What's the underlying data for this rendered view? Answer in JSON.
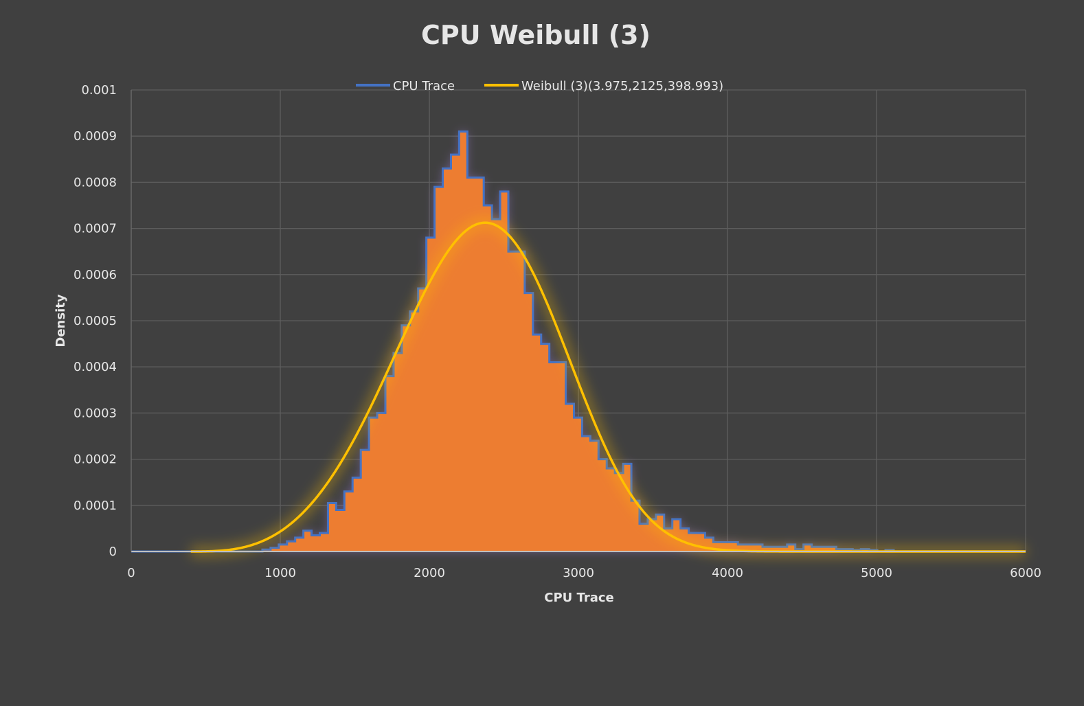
{
  "chart_data": {
    "type": "histogram_with_fit",
    "title": "CPU Weibull (3)",
    "xlabel": "CPU Trace",
    "ylabel": "Density",
    "xlim": [
      0,
      6000
    ],
    "ylim": [
      0,
      0.001
    ],
    "x_ticks": [
      "0",
      "1000",
      "2000",
      "3000",
      "4000",
      "5000",
      "6000"
    ],
    "y_ticks": [
      "0",
      "0.0001",
      "0.0002",
      "0.0003",
      "0.0004",
      "0.0005",
      "0.0006",
      "0.0007",
      "0.0008",
      "0.0009",
      "0.001"
    ],
    "grid": true,
    "legend_position": "top",
    "series": [
      {
        "name": "CPU Trace",
        "kind": "histogram",
        "line_color": "#4472c4",
        "fill_color": "#ed7d31",
        "bin_edges": [
          0,
          55,
          110,
          165,
          220,
          275,
          330,
          385,
          440,
          495,
          550,
          605,
          660,
          715,
          770,
          825,
          880,
          935,
          990,
          1045,
          1100,
          1155,
          1210,
          1265,
          1320,
          1375,
          1430,
          1485,
          1540,
          1595,
          1650,
          1705,
          1760,
          1815,
          1870,
          1925,
          1980,
          2035,
          2090,
          2145,
          2200,
          2255,
          2310,
          2365,
          2420,
          2475,
          2530,
          2585,
          2640,
          2695,
          2750,
          2805,
          2860,
          2915,
          2970,
          3025,
          3080,
          3135,
          3190,
          3245,
          3300,
          3355,
          3410,
          3465,
          3520,
          3575,
          3630,
          3685,
          3740,
          3795,
          3850,
          3905,
          3960,
          4015,
          4070,
          4125,
          4180,
          4235,
          4290,
          4345,
          4400,
          4455,
          4510,
          4565,
          4620,
          4675,
          4730,
          4785,
          4840,
          4895,
          4950,
          5005,
          5060,
          5115,
          5170,
          5225,
          5280,
          5335,
          5390,
          5445,
          5500,
          5555,
          5610,
          5665,
          5720,
          5775,
          5830,
          5885,
          5940,
          6000
        ],
        "densities": [
          0,
          0,
          0,
          0,
          0,
          0,
          0,
          0,
          0,
          0,
          0,
          0,
          0,
          0,
          0,
          0,
          4e-06,
          8e-06,
          1.5e-05,
          2.2e-05,
          3e-05,
          4.5e-05,
          3.5e-05,
          4e-05,
          0.000105,
          9e-05,
          0.00013,
          0.00016,
          0.00022,
          0.00029,
          0.0003,
          0.00038,
          0.00043,
          0.00049,
          0.00052,
          0.00057,
          0.00068,
          0.00079,
          0.00083,
          0.00086,
          0.00091,
          0.00081,
          0.00081,
          0.00075,
          0.00072,
          0.00078,
          0.00065,
          0.00065,
          0.00056,
          0.00047,
          0.00045,
          0.00041,
          0.00041,
          0.00032,
          0.00029,
          0.00025,
          0.00024,
          0.0002,
          0.00018,
          0.00017,
          0.00019,
          0.00011,
          6e-05,
          7e-05,
          8e-05,
          5e-05,
          7e-05,
          5e-05,
          4e-05,
          4e-05,
          3e-05,
          2e-05,
          2e-05,
          2e-05,
          1.5e-05,
          1.5e-05,
          1.5e-05,
          1e-05,
          1e-05,
          1e-05,
          1.5e-05,
          5e-06,
          1.5e-05,
          1e-05,
          1e-05,
          1e-05,
          5e-06,
          5e-06,
          3e-06,
          5e-06,
          3e-06,
          0,
          3e-06,
          0,
          0,
          0,
          0,
          0,
          0,
          0,
          0,
          0,
          0,
          0,
          0,
          0,
          0,
          0,
          0
        ]
      },
      {
        "name": "Weibull (3)(3.975,2125,398.993)",
        "kind": "curve",
        "color": "#ffc000",
        "shape": 3.975,
        "scale": 2125,
        "location": 398.993
      }
    ]
  }
}
